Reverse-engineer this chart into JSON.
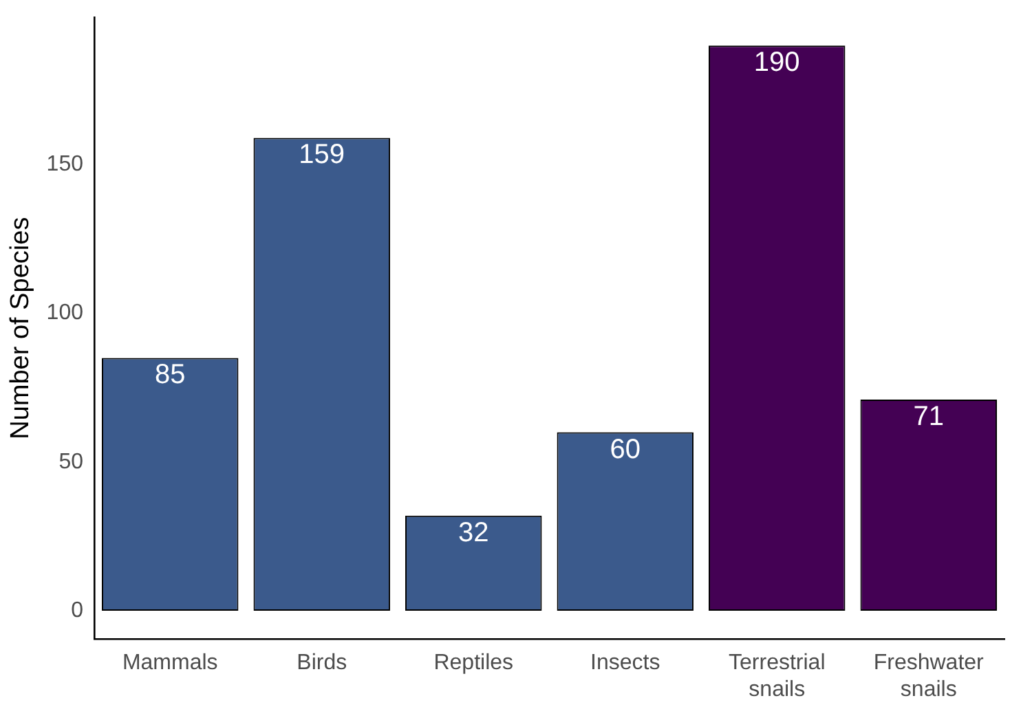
{
  "chart_data": {
    "type": "bar",
    "ylabel": "Number of Species",
    "categories": [
      "Mammals",
      "Birds",
      "Reptiles",
      "Insects",
      "Terrestrial snails",
      "Freshwater snails"
    ],
    "values": [
      85,
      159,
      32,
      60,
      190,
      71
    ],
    "colors": [
      "#3b5a8c",
      "#3b5a8c",
      "#3b5a8c",
      "#3b5a8c",
      "#440154",
      "#440154"
    ],
    "ylim": [
      -9.5,
      199.5
    ],
    "yticks": [
      0,
      50,
      100,
      150
    ],
    "grid": false,
    "legend": false,
    "data_labels": true
  }
}
